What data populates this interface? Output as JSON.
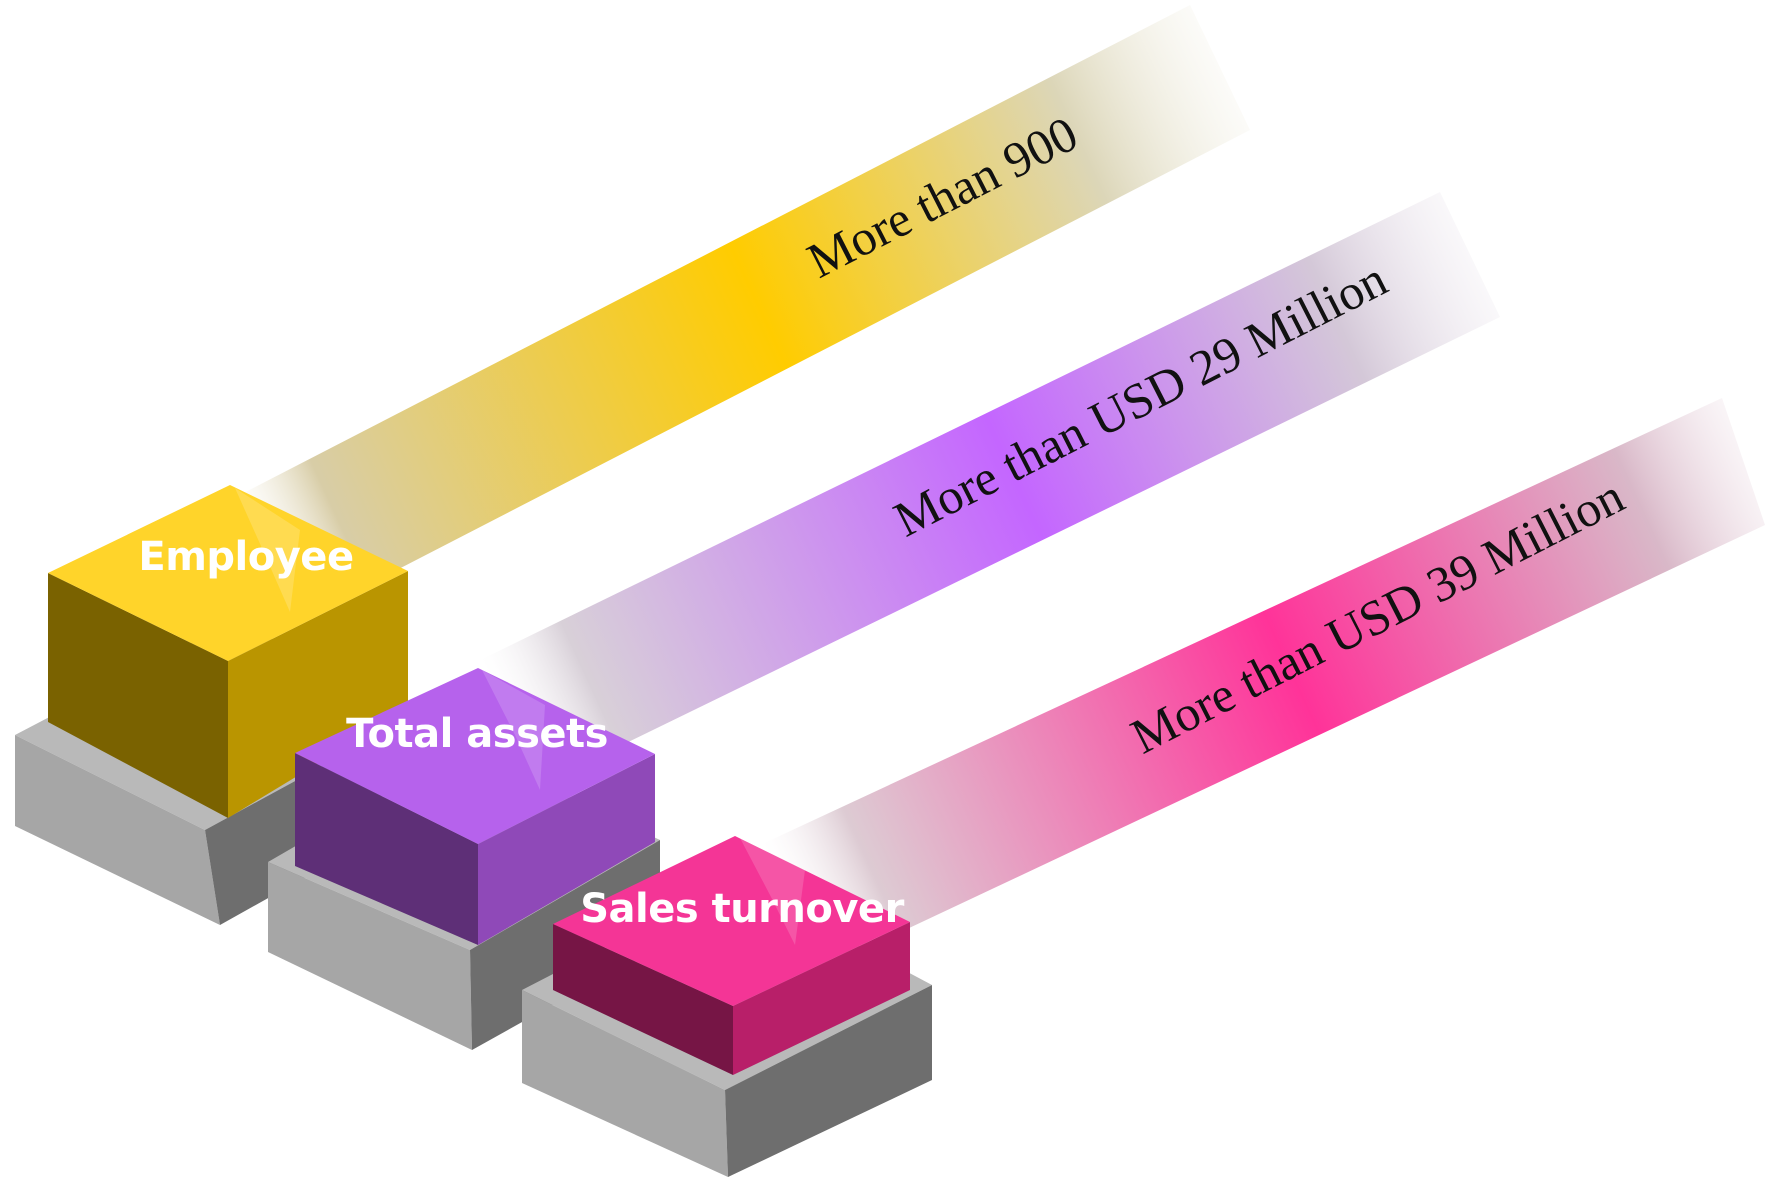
{
  "items": [
    {
      "category": "Employee",
      "value_text": "More than 900",
      "color": "#FFCC00",
      "top_color": "#FFD42A",
      "left_color": "#7A6200",
      "right_color": "#BA9500"
    },
    {
      "category": "Total assets",
      "value_text": "More than USD 29 Million",
      "color": "#C466FF",
      "top_color": "#B662EC",
      "left_color": "#5E2F77",
      "right_color": "#8F49B8"
    },
    {
      "category": "Sales turnover",
      "value_text": "More than USD 39 Million",
      "color": "#FF3399",
      "top_color": "#F43596",
      "left_color": "#761545",
      "right_color": "#B81F69"
    }
  ],
  "base_colors": {
    "top": "#B9B9B9",
    "left": "#A6A6A6",
    "right": "#6E6E6E"
  }
}
